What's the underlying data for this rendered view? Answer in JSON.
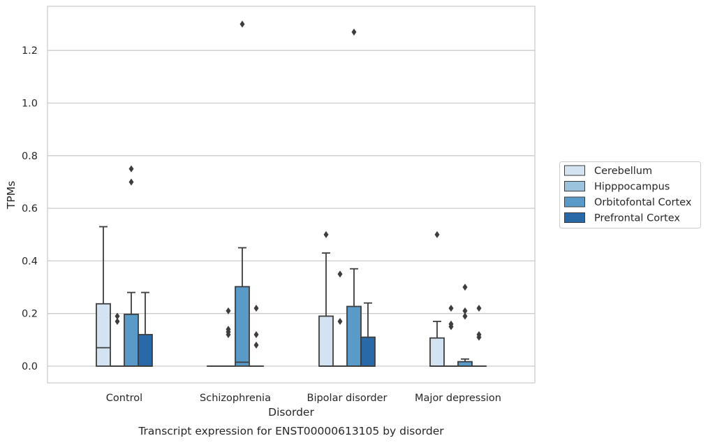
{
  "chart_data": {
    "type": "boxplot",
    "title": "",
    "caption": "Transcript expression for ENST00000613105 by disorder",
    "xlabel": "Disorder",
    "ylabel": "TPMs",
    "ylim": [
      -0.065,
      1.37
    ],
    "yticks": [
      0.0,
      0.2,
      0.4,
      0.6,
      0.8,
      1.0,
      1.2
    ],
    "ytick_labels": [
      "0.0",
      "0.2",
      "0.4",
      "0.6",
      "0.8",
      "1.0",
      "1.2"
    ],
    "grid": "horizontal",
    "legend_position": "right",
    "categories": [
      "Control",
      "Schizophrenia",
      "Bipolar disorder",
      "Major depression"
    ],
    "series": [
      {
        "name": "Cerebellum",
        "color": "#d3e3f2",
        "boxes": [
          {
            "q1": 0.0,
            "median": 0.07,
            "q3": 0.237,
            "whisker_low": 0.0,
            "whisker_high": 0.53,
            "outliers": []
          },
          {
            "q1": 0.0,
            "median": 0.0,
            "q3": 0.0,
            "whisker_low": 0.0,
            "whisker_high": 0.0,
            "outliers": []
          },
          {
            "q1": 0.0,
            "median": 0.0,
            "q3": 0.19,
            "whisker_low": 0.0,
            "whisker_high": 0.43,
            "outliers": [
              0.5
            ]
          },
          {
            "q1": 0.0,
            "median": 0.0,
            "q3": 0.107,
            "whisker_low": 0.0,
            "whisker_high": 0.17,
            "outliers": [
              0.5
            ]
          }
        ]
      },
      {
        "name": "Hipppocampus",
        "color": "#9cc3de",
        "boxes": [
          {
            "q1": 0.0,
            "median": 0.0,
            "q3": 0.0,
            "whisker_low": 0.0,
            "whisker_high": 0.0,
            "outliers": [
              0.17,
              0.19
            ]
          },
          {
            "q1": 0.0,
            "median": 0.0,
            "q3": 0.0,
            "whisker_low": 0.0,
            "whisker_high": 0.0,
            "outliers": [
              0.12,
              0.13,
              0.14,
              0.21
            ]
          },
          {
            "q1": 0.0,
            "median": 0.0,
            "q3": 0.0,
            "whisker_low": 0.0,
            "whisker_high": 0.0,
            "outliers": [
              0.17,
              0.35
            ]
          },
          {
            "q1": 0.0,
            "median": 0.0,
            "q3": 0.0,
            "whisker_low": 0.0,
            "whisker_high": 0.0,
            "outliers": [
              0.15,
              0.16,
              0.22
            ]
          }
        ]
      },
      {
        "name": "Orbitofontal Cortex",
        "color": "#5a9ac8",
        "boxes": [
          {
            "q1": 0.0,
            "median": 0.0,
            "q3": 0.197,
            "whisker_low": 0.0,
            "whisker_high": 0.28,
            "outliers": [
              0.7,
              0.75
            ]
          },
          {
            "q1": 0.0,
            "median": 0.015,
            "q3": 0.302,
            "whisker_low": 0.0,
            "whisker_high": 0.45,
            "outliers": [
              1.3
            ]
          },
          {
            "q1": 0.0,
            "median": 0.0,
            "q3": 0.227,
            "whisker_low": 0.0,
            "whisker_high": 0.37,
            "outliers": [
              1.27
            ]
          },
          {
            "q1": 0.0,
            "median": 0.0,
            "q3": 0.017,
            "whisker_low": 0.0,
            "whisker_high": 0.027,
            "outliers": [
              0.19,
              0.21,
              0.3
            ]
          }
        ]
      },
      {
        "name": "Prefrontal Cortex",
        "color": "#2a69a8",
        "boxes": [
          {
            "q1": 0.0,
            "median": 0.0,
            "q3": 0.12,
            "whisker_low": 0.0,
            "whisker_high": 0.28,
            "outliers": []
          },
          {
            "q1": 0.0,
            "median": 0.0,
            "q3": 0.0,
            "whisker_low": 0.0,
            "whisker_high": 0.0,
            "outliers": [
              0.08,
              0.12,
              0.22
            ]
          },
          {
            "q1": 0.0,
            "median": 0.0,
            "q3": 0.11,
            "whisker_low": 0.0,
            "whisker_high": 0.24,
            "outliers": []
          },
          {
            "q1": 0.0,
            "median": 0.0,
            "q3": 0.0,
            "whisker_low": 0.0,
            "whisker_high": 0.0,
            "outliers": [
              0.11,
              0.12,
              0.22
            ]
          }
        ]
      }
    ]
  }
}
